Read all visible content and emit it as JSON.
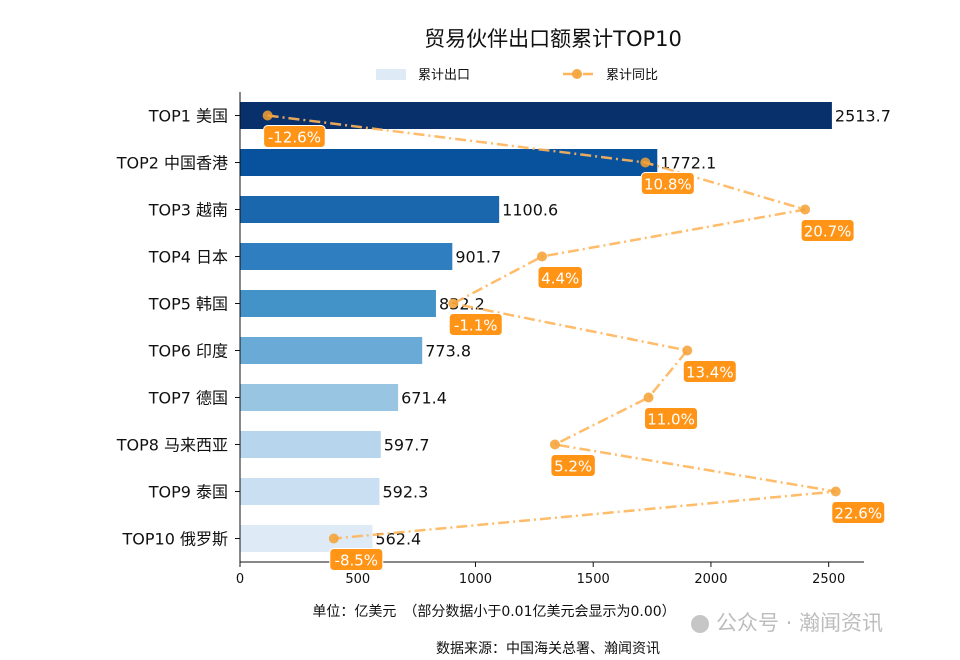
{
  "chart_data": {
    "type": "bar+line",
    "title": "贸易伙伴出口额累计TOP10",
    "categories": [
      "TOP1 美国",
      "TOP2 中国香港",
      "TOP3 越南",
      "TOP4 日本",
      "TOP5 韩国",
      "TOP6 印度",
      "TOP7 德国",
      "TOP8 马来西亚",
      "TOP9 泰国",
      "TOP10 俄罗斯"
    ],
    "series": [
      {
        "name": "累计出口",
        "type": "bar",
        "values": [
          2513.7,
          1772.1,
          1100.6,
          901.7,
          832.2,
          773.8,
          671.4,
          597.7,
          592.3,
          562.4
        ],
        "colors": [
          "#08306b",
          "#08519c",
          "#1a67ae",
          "#2f7fc0",
          "#4393c8",
          "#69abd6",
          "#97c5e2",
          "#b7d5ec",
          "#cadff1",
          "#deebf7"
        ]
      },
      {
        "name": "累计同比",
        "type": "line",
        "unit": "%",
        "values": [
          -12.6,
          10.8,
          20.7,
          4.4,
          -1.1,
          13.4,
          11.0,
          5.2,
          22.6,
          -8.5
        ],
        "labels": [
          "-12.6%",
          "10.8%",
          "20.7%",
          "4.4%",
          "-1.1%",
          "13.4%",
          "11.0%",
          "5.2%",
          "22.6%",
          "-8.5%"
        ],
        "color": "#ffb55a"
      }
    ],
    "xlim": [
      0,
      2650
    ],
    "xticks": [
      "0",
      "500",
      "1000",
      "1500",
      "2000",
      "2500"
    ],
    "xlabel": "单位：亿美元　（部分数据小于0.01亿美元会显示为0.00）",
    "source": "数据来源：中国海关总署、瀚闻资讯",
    "legend": "top-center",
    "grid": false
  },
  "watermark": "公众号 · 瀚闻资讯"
}
